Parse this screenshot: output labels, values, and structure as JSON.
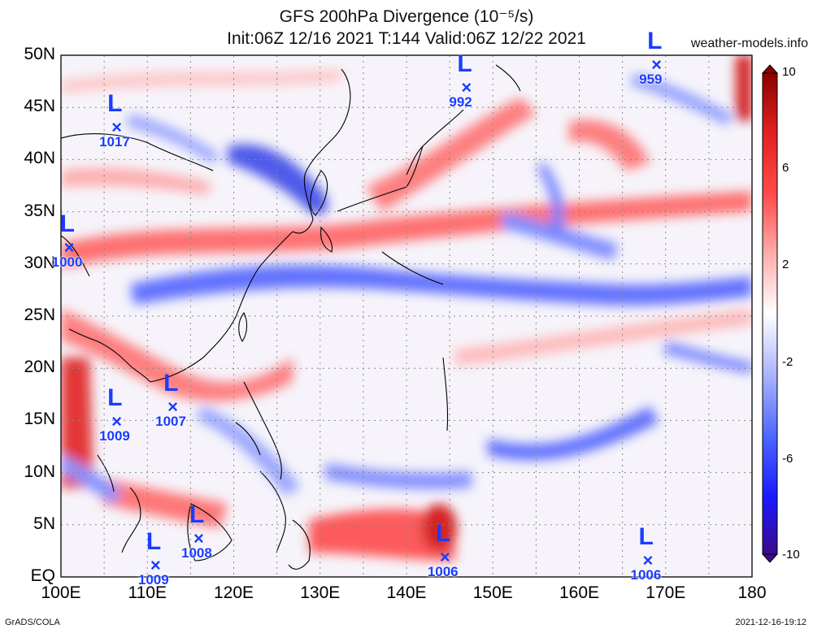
{
  "title": {
    "line1": "GFS 200hPa Divergence (10⁻⁵/s)",
    "line2": "Init:06Z 12/16 2021 T:144 Valid:06Z 12/22 2021"
  },
  "watermark": "weather-models.info",
  "footer": {
    "left": "GrADS/COLA",
    "right": "2021-12-16-19:12"
  },
  "axes": {
    "lat_labels": [
      "50N",
      "45N",
      "40N",
      "35N",
      "30N",
      "25N",
      "20N",
      "15N",
      "10N",
      "5N",
      "EQ"
    ],
    "lon_labels": [
      "100E",
      "110E",
      "120E",
      "130E",
      "140E",
      "150E",
      "160E",
      "170E",
      "180"
    ]
  },
  "colorbar": {
    "labels": [
      "10",
      "6",
      "2",
      "-2",
      "-6",
      "-10"
    ],
    "colors": [
      "#3b0a8c",
      "#1a1aff",
      "#4f6bff",
      "#a7b4ff",
      "#ffffff",
      "#ffb3b3",
      "#ff6b6b",
      "#ff1a1a",
      "#cc0000",
      "#8b0000"
    ]
  },
  "lows": [
    {
      "pressure": "959",
      "lon": 169.0,
      "lat": 49.0
    },
    {
      "pressure": "992",
      "lon": 147.0,
      "lat": 46.8
    },
    {
      "pressure": "1017",
      "lon": 106.5,
      "lat": 43.0
    },
    {
      "pressure": "1000",
      "lon": 101.0,
      "lat": 31.5
    },
    {
      "pressure": "1007",
      "lon": 113.0,
      "lat": 16.2
    },
    {
      "pressure": "1009",
      "lon": 106.5,
      "lat": 14.8
    },
    {
      "pressure": "1008",
      "lon": 116.0,
      "lat": 3.6
    },
    {
      "pressure": "1009",
      "lon": 111.0,
      "lat": 1.0
    },
    {
      "pressure": "1006",
      "lon": 144.5,
      "lat": 1.8
    },
    {
      "pressure": "1006",
      "lon": 168.0,
      "lat": 1.5
    }
  ]
}
